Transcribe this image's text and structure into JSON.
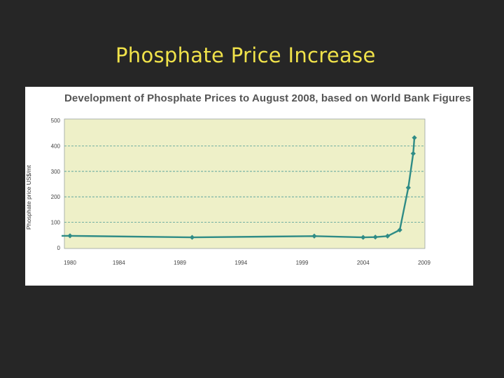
{
  "slide": {
    "title": "Phosphate Price Increase"
  },
  "colors": {
    "background": "#262626",
    "title": "#f0e24a",
    "plot_bg": "#eef0c8",
    "line": "#2f8c86",
    "grid": "#4a9a96"
  },
  "chart_data": {
    "type": "line",
    "title": "Development of Phosphate Prices to August 2008, based on World Bank Figures",
    "ylabel": "Phosphate price US$/mt",
    "xlabel": "",
    "xlim": [
      1980,
      2009
    ],
    "ylim": [
      0,
      500
    ],
    "x_ticks": [
      "1980",
      "1984",
      "1989",
      "1994",
      "1999",
      "2004",
      "2009"
    ],
    "x_tick_values": [
      1980,
      1984,
      1989,
      1994,
      1999,
      2004,
      2009
    ],
    "y_ticks": [
      "0",
      "100",
      "200",
      "300",
      "400",
      "500"
    ],
    "y_tick_values": [
      0,
      100,
      200,
      300,
      400,
      500
    ],
    "grid": "horizontal dashed",
    "series": [
      {
        "x": [
          1980,
          1990,
          2000,
          2004,
          2005,
          2006,
          2007,
          2007.7,
          2008.1,
          2008.2
        ],
        "y": [
          47,
          41,
          46,
          41,
          42,
          46,
          70,
          236,
          370,
          432
        ]
      }
    ]
  }
}
